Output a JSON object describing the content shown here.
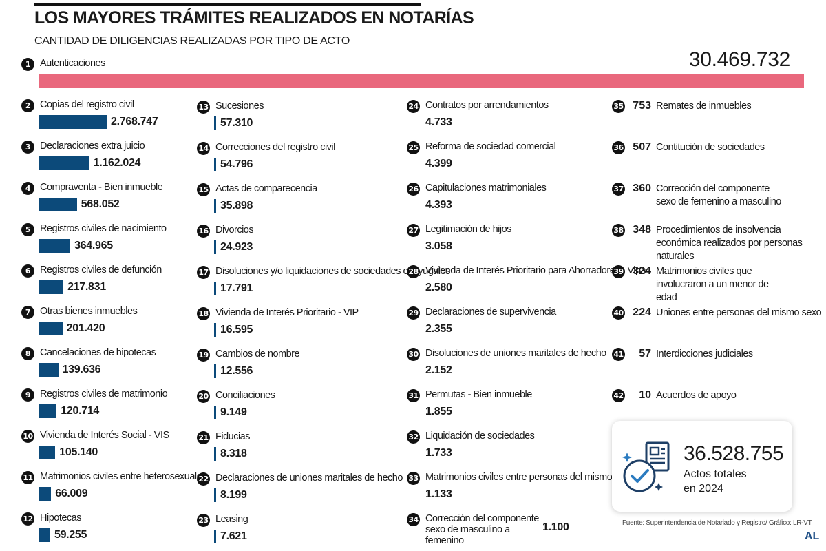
{
  "header": {
    "title": "LOS MAYORES TRÁMITES REALIZADOS EN NOTARÍAS",
    "subtitle": "CANTIDAD DE DILIGENCIAS REALIZADAS POR TIPO DE ACTO"
  },
  "chart_data": {
    "type": "bar",
    "title": "LOS MAYORES TRÁMITES REALIZADOS EN NOTARÍAS",
    "subtitle": "CANTIDAD DE DILIGENCIAS REALIZADAS POR TIPO DE ACTO",
    "colors": {
      "highlight": "#e9687d",
      "bar": "#0c4a7a"
    },
    "items": [
      {
        "rank": 1,
        "label": "Autenticaciones",
        "value": 30469732,
        "display": "30.469.732"
      },
      {
        "rank": 2,
        "label": "Copias del registro civil",
        "value": 2768747,
        "display": "2.768.747"
      },
      {
        "rank": 3,
        "label": "Declaraciones extra juicio",
        "value": 1162024,
        "display": "1.162.024"
      },
      {
        "rank": 4,
        "label": "Compraventa - Bien inmueble",
        "value": 568052,
        "display": "568.052"
      },
      {
        "rank": 5,
        "label": "Registros civiles de nacimiento",
        "value": 364965,
        "display": "364.965"
      },
      {
        "rank": 6,
        "label": "Registros civiles de defunción",
        "value": 217831,
        "display": "217.831"
      },
      {
        "rank": 7,
        "label": "Otras bienes inmuebles",
        "value": 201420,
        "display": "201.420"
      },
      {
        "rank": 8,
        "label": "Cancelaciones de hipotecas",
        "value": 139636,
        "display": "139.636"
      },
      {
        "rank": 9,
        "label": "Registros civiles de matrimonio",
        "value": 120714,
        "display": "120.714"
      },
      {
        "rank": 10,
        "label": "Vivienda de Interés Social - VIS",
        "value": 105140,
        "display": "105.140"
      },
      {
        "rank": 11,
        "label": "Matrimonios civiles entre heterosexuales",
        "value": 66009,
        "display": "66.009"
      },
      {
        "rank": 12,
        "label": "Hipotecas",
        "value": 59255,
        "display": "59.255"
      },
      {
        "rank": 13,
        "label": "Sucesiones",
        "value": 57310,
        "display": "57.310"
      },
      {
        "rank": 14,
        "label": "Correcciones del registro civil",
        "value": 54796,
        "display": "54.796"
      },
      {
        "rank": 15,
        "label": "Actas de comparecencia",
        "value": 35898,
        "display": "35.898"
      },
      {
        "rank": 16,
        "label": "Divorcios",
        "value": 24923,
        "display": "24.923"
      },
      {
        "rank": 17,
        "label": "Disoluciones y/o liquidaciones de sociedades conyugales",
        "value": 17791,
        "display": "17.791"
      },
      {
        "rank": 18,
        "label": "Vivienda de Interés Prioritario - VIP",
        "value": 16595,
        "display": "16.595"
      },
      {
        "rank": 19,
        "label": "Cambios de nombre",
        "value": 12556,
        "display": "12.556"
      },
      {
        "rank": 20,
        "label": "Conciliaciones",
        "value": 9149,
        "display": "9.149"
      },
      {
        "rank": 21,
        "label": "Fiducias",
        "value": 8318,
        "display": "8.318"
      },
      {
        "rank": 22,
        "label": "Declaraciones de uniones maritales de hecho",
        "value": 8199,
        "display": "8.199"
      },
      {
        "rank": 23,
        "label": "Leasing",
        "value": 7621,
        "display": "7.621"
      },
      {
        "rank": 24,
        "label": "Contratos por arrendamientos",
        "value": 4733,
        "display": "4.733"
      },
      {
        "rank": 25,
        "label": "Reforma de sociedad comercial",
        "value": 4399,
        "display": "4.399"
      },
      {
        "rank": 26,
        "label": "Capitulaciones matrimoniales",
        "value": 4393,
        "display": "4.393"
      },
      {
        "rank": 27,
        "label": "Legitimación de hijos",
        "value": 3058,
        "display": "3.058"
      },
      {
        "rank": 28,
        "label": "Vivienda de Interés Prioritario para Ahorradores - Vipa",
        "value": 2580,
        "display": "2.580"
      },
      {
        "rank": 29,
        "label": "Declaraciones de supervivencia",
        "value": 2355,
        "display": "2.355"
      },
      {
        "rank": 30,
        "label": "Disoluciones de uniones maritales de hecho",
        "value": 2152,
        "display": "2.152"
      },
      {
        "rank": 31,
        "label": "Permutas - Bien inmueble",
        "value": 1855,
        "display": "1.855"
      },
      {
        "rank": 32,
        "label": "Liquidación de sociedades",
        "value": 1733,
        "display": "1.733"
      },
      {
        "rank": 33,
        "label": "Matrimonios civiles entre personas del mismo sexo",
        "value": 1133,
        "display": "1.133"
      },
      {
        "rank": 34,
        "label": "Corrección del componente sexo de masculino a femenino",
        "value": 1100,
        "display": "1.100"
      },
      {
        "rank": 35,
        "label": "Remates de inmuebles",
        "value": 753,
        "display": "753"
      },
      {
        "rank": 36,
        "label": "Contitución de sociedades",
        "value": 507,
        "display": "507"
      },
      {
        "rank": 37,
        "label": "Corrección del componente sexo de femenino a masculino",
        "value": 360,
        "display": "360"
      },
      {
        "rank": 38,
        "label": "Procedimientos de insolvencia económica realizados por personas naturales",
        "value": 348,
        "display": "348"
      },
      {
        "rank": 39,
        "label": "Matrimonios civiles que involucraron a un menor de edad",
        "value": 324,
        "display": "324"
      },
      {
        "rank": 40,
        "label": "Uniones entre personas del mismo sexo",
        "value": 224,
        "display": "224"
      },
      {
        "rank": 41,
        "label": "Interdicciones judiciales",
        "value": 57,
        "display": "57"
      },
      {
        "rank": 42,
        "label": "Acuerdos de apoyo",
        "value": 10,
        "display": "10"
      }
    ]
  },
  "total": {
    "value": "36.528.755",
    "label": "Actos totales en 2024",
    "icon": "document-check-icon"
  },
  "footer": {
    "source": "Fuente: Superintendencia de Notariado y Registro/ Gráfico: LR-VT",
    "logo": "AL"
  }
}
